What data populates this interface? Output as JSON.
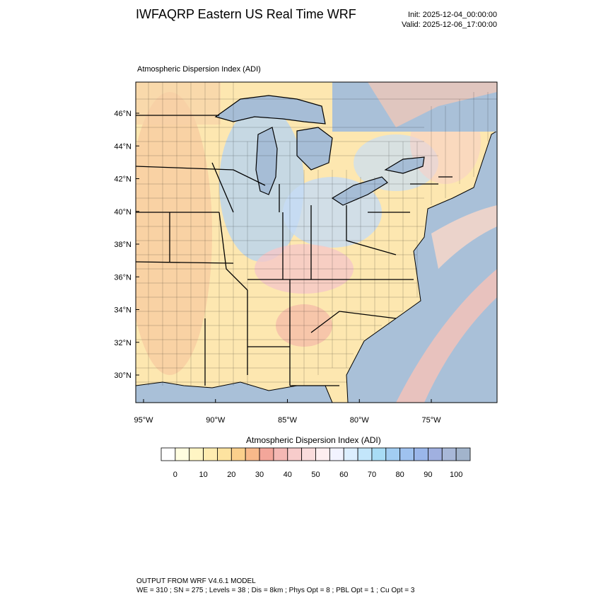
{
  "header": {
    "title": "IWFAQRP Eastern US Real Time WRF",
    "init": "Init: 2025-12-04_00:00:00",
    "valid": "Valid: 2025-12-06_17:00:00"
  },
  "map": {
    "label": "Atmospheric Dispersion Index   (ADI)",
    "lat_labels": [
      "46°N",
      "44°N",
      "42°N",
      "40°N",
      "38°N",
      "36°N",
      "34°N",
      "32°N",
      "30°N"
    ],
    "lon_labels": [
      "95°W",
      "90°W",
      "85°W",
      "80°W",
      "75°W"
    ]
  },
  "colorbar": {
    "title": "Atmospheric Dispersion Index  (ADI)",
    "colors": [
      "#ffffff",
      "#fffde0",
      "#fff5c4",
      "#ffecb0",
      "#fde3a0",
      "#fbd08c",
      "#f8b98a",
      "#f3a69a",
      "#f4b8b4",
      "#f7cccb",
      "#fadcdc",
      "#fdeef0",
      "#f2f3ff",
      "#dceeff",
      "#c3e6fb",
      "#a8dcf5",
      "#a2cdf2",
      "#9fc2ef",
      "#9ab6ea",
      "#a0b0e0",
      "#a8b8d8",
      "#a2b4cc"
    ],
    "ticks": [
      0,
      10,
      20,
      30,
      40,
      50,
      60,
      70,
      80,
      90,
      100
    ]
  },
  "footer": {
    "lines": [
      "OUTPUT FROM WRF V4.6.1 MODEL",
      "WE = 310 ; SN = 275 ; Levels = 38 ; Dis = 8km ; Phys Opt = 8 ; PBL Opt = 1 ; Cu Opt = 3"
    ]
  }
}
